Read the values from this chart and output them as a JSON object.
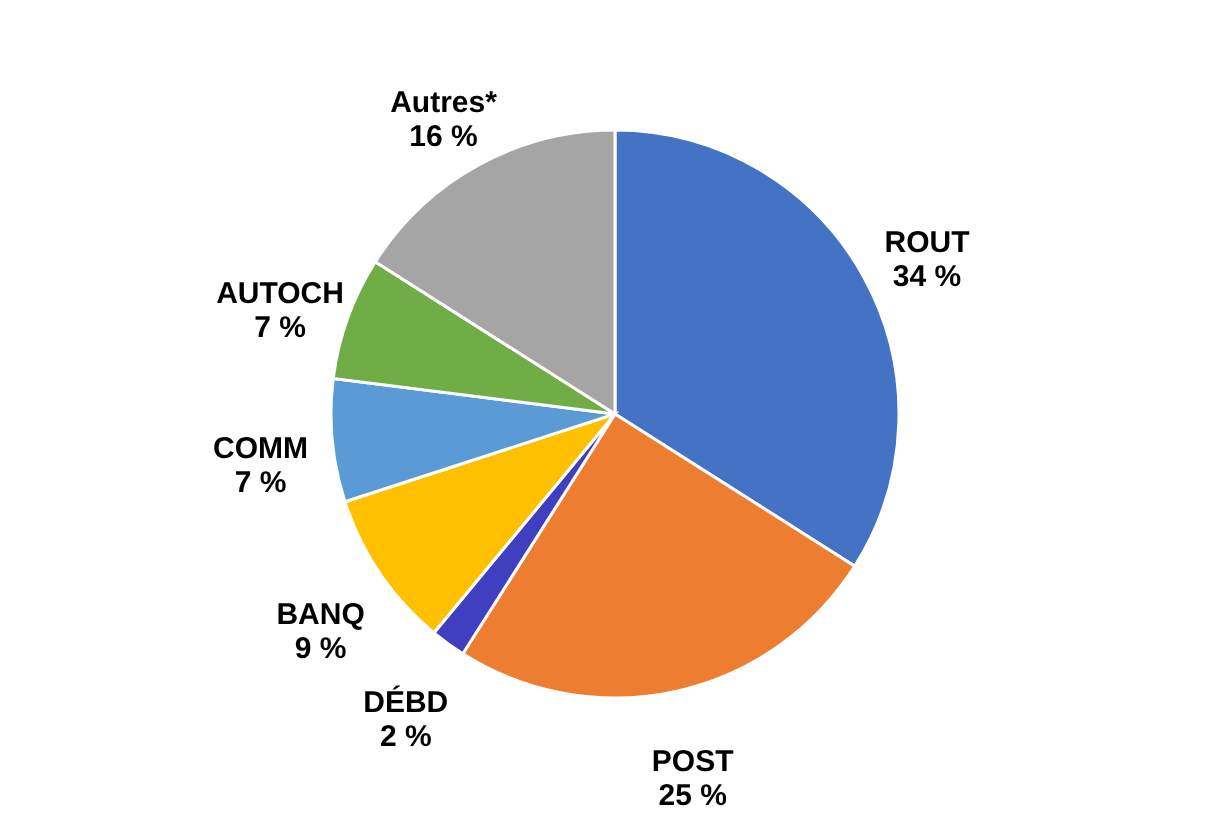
{
  "chart_data": {
    "type": "pie",
    "categories": [
      "ROUT",
      "POST",
      "DÉBD",
      "BANQ",
      "COMM",
      "AUTOCH",
      "Autres*"
    ],
    "values": [
      34,
      25,
      2,
      9,
      7,
      7,
      16
    ],
    "value_labels": [
      "34 %",
      "25 %",
      "2 %",
      "9 %",
      "7 %",
      "7 %",
      "16 %"
    ],
    "colors": [
      "#4472c4",
      "#ed7d31",
      "#3f3fbf",
      "#ffc000",
      "#5b9bd5",
      "#70ad47",
      "#a5a5a5"
    ]
  }
}
